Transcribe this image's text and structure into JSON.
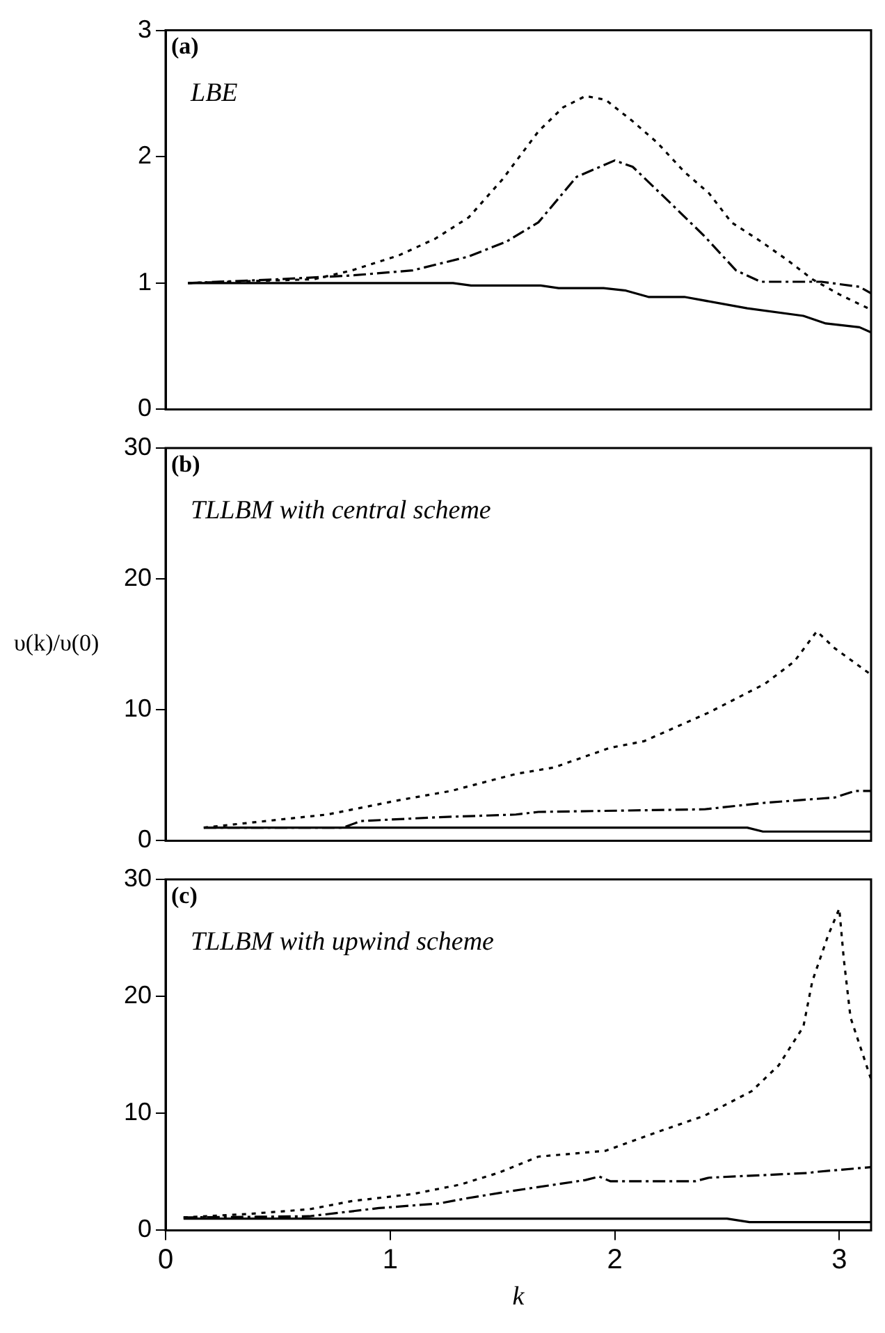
{
  "chart_data": [
    {
      "type": "line",
      "annotations": [
        "(a)",
        "LBE"
      ],
      "xlim": [
        0,
        3.1416
      ],
      "xticks": [
        0,
        1,
        2,
        3
      ],
      "ylim": [
        0,
        3
      ],
      "yticks": [
        0,
        1,
        2,
        3
      ],
      "tick_labels": "y",
      "grid": false,
      "legend": false,
      "series": [
        {
          "color": "#000000",
          "line_style": "solid",
          "x": [
            0.1,
            1.28,
            1.36,
            1.67,
            1.75,
            1.95,
            2.05,
            2.15,
            2.31,
            2.59,
            2.84,
            2.94,
            3.09,
            3.14
          ],
          "values": [
            1,
            1,
            0.98,
            0.98,
            0.96,
            0.96,
            0.94,
            0.89,
            0.89,
            0.8,
            0.74,
            0.68,
            0.65,
            0.61
          ]
        },
        {
          "color": "#000000",
          "line_style": "dashed",
          "x": [
            0.1,
            0.51,
            0.83,
            1.1,
            1.35,
            1.52,
            1.66,
            1.83,
            2.0,
            2.08,
            2.25,
            2.4,
            2.54,
            2.65,
            2.92,
            3.09,
            3.14
          ],
          "values": [
            1,
            1.03,
            1.06,
            1.1,
            1.21,
            1.33,
            1.48,
            1.84,
            1.97,
            1.92,
            1.63,
            1.37,
            1.1,
            1.01,
            1.01,
            0.97,
            0.92
          ]
        },
        {
          "color": "#000000",
          "line_style": "dotted",
          "x": [
            0.1,
            0.66,
            0.83,
            1.04,
            1.2,
            1.35,
            1.5,
            1.66,
            1.77,
            1.87,
            1.96,
            2.08,
            2.19,
            2.31,
            2.42,
            2.52,
            2.65,
            2.77,
            2.88,
            3.0,
            3.14
          ],
          "values": [
            1,
            1.03,
            1.1,
            1.22,
            1.35,
            1.52,
            1.82,
            2.2,
            2.39,
            2.48,
            2.45,
            2.28,
            2.11,
            1.88,
            1.71,
            1.48,
            1.33,
            1.18,
            1.03,
            0.91,
            0.79
          ]
        }
      ]
    },
    {
      "type": "line",
      "annotations": [
        "(b)",
        "TLLBM with central scheme"
      ],
      "ylabel": "υ(k)/υ(0)",
      "xlim": [
        0,
        3.1416
      ],
      "xticks": [
        0,
        1,
        2,
        3
      ],
      "ylim": [
        0,
        30
      ],
      "yticks": [
        0,
        10,
        20,
        30
      ],
      "tick_labels": "y",
      "grid": false,
      "legend": false,
      "series": [
        {
          "color": "#000000",
          "line_style": "solid",
          "x": [
            0.17,
            2.59,
            2.66,
            3.14
          ],
          "values": [
            1,
            1,
            0.7,
            0.7
          ]
        },
        {
          "color": "#000000",
          "line_style": "dashed",
          "x": [
            0.17,
            0.79,
            0.87,
            1.22,
            1.56,
            1.66,
            2.4,
            2.67,
            2.98,
            3.07,
            3.14
          ],
          "values": [
            1,
            1,
            1.5,
            1.8,
            2,
            2.2,
            2.4,
            2.9,
            3.3,
            3.8,
            3.8
          ]
        },
        {
          "color": "#000000",
          "line_style": "dotted",
          "x": [
            0.17,
            0.72,
            1.04,
            1.27,
            1.56,
            1.73,
            1.98,
            2.13,
            2.42,
            2.67,
            2.8,
            2.9,
            2.98,
            3.14
          ],
          "values": [
            1,
            2,
            3.1,
            3.8,
            5.1,
            5.6,
            7.1,
            7.6,
            9.8,
            12,
            13.7,
            16,
            14.7,
            12.7
          ]
        }
      ]
    },
    {
      "type": "line",
      "annotations": [
        "(c)",
        "TLLBM with upwind scheme"
      ],
      "xlabel": "k",
      "xlim": [
        0,
        3.1416
      ],
      "xticks": [
        0,
        1,
        2,
        3
      ],
      "ylim": [
        0,
        30
      ],
      "yticks": [
        0,
        10,
        20,
        30
      ],
      "grid": false,
      "legend": false,
      "series": [
        {
          "color": "#000000",
          "line_style": "solid",
          "x": [
            0.08,
            2.5,
            2.6,
            3.14
          ],
          "values": [
            1,
            1,
            0.7,
            0.7
          ]
        },
        {
          "color": "#000000",
          "line_style": "dashed",
          "x": [
            0.08,
            0.64,
            0.95,
            1.22,
            1.33,
            1.52,
            1.73,
            1.87,
            1.93,
            1.98,
            2.36,
            2.42,
            2.86,
            2.9,
            3.14
          ],
          "values": [
            1.1,
            1.2,
            1.9,
            2.3,
            2.7,
            3.3,
            3.9,
            4.3,
            4.6,
            4.2,
            4.2,
            4.5,
            4.9,
            5,
            5.4
          ]
        },
        {
          "color": "#000000",
          "line_style": "dotted",
          "x": [
            0.08,
            0.37,
            0.64,
            0.83,
            1.1,
            1.31,
            1.48,
            1.66,
            1.96,
            2.19,
            2.4,
            2.61,
            2.73,
            2.84,
            2.88,
            2.95,
            3.0,
            3.02,
            3.05,
            3.14
          ],
          "values": [
            1.1,
            1.4,
            1.8,
            2.5,
            3.1,
            3.9,
            4.9,
            6.3,
            6.8,
            8.4,
            9.8,
            11.9,
            14.1,
            17.4,
            21.3,
            25.2,
            27.5,
            23.2,
            18.2,
            13
          ]
        }
      ]
    }
  ]
}
